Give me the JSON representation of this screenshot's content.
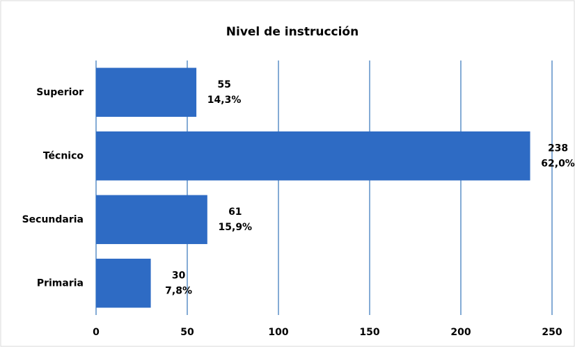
{
  "chart_data": {
    "type": "bar",
    "orientation": "horizontal",
    "title": "Nivel de instrucción",
    "categories": [
      "Superior",
      "Técnico",
      "Secundaria",
      "Primaria"
    ],
    "values": [
      55,
      238,
      61,
      30
    ],
    "percentage_labels": [
      "14,3%",
      "62,0%",
      "15,9%",
      "7,8%"
    ],
    "color": "#2e6bc4",
    "xlim": [
      0,
      250
    ],
    "xticks": [
      0,
      50,
      100,
      150,
      200,
      250
    ],
    "grid": true
  }
}
